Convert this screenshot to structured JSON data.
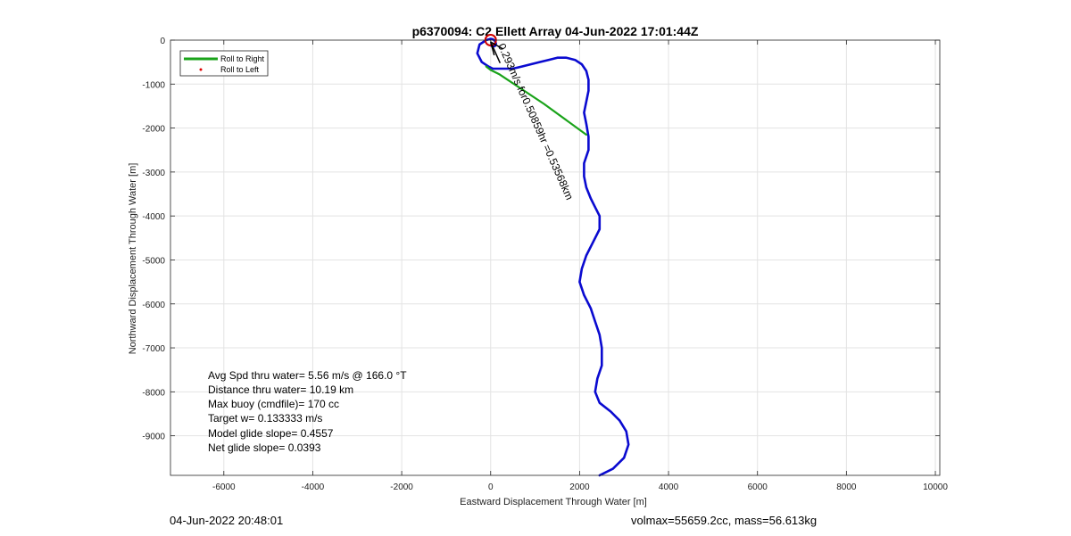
{
  "chart_data": {
    "type": "line",
    "title": "p6370094: C2 Ellett Array 04-Jun-2022 17:01:44Z",
    "xlabel": "Eastward Displacement Through Water [m]",
    "ylabel": "Northward Displacement Through Water [m]",
    "xlim": [
      -7200,
      10100
    ],
    "ylim": [
      -9900,
      0
    ],
    "xticks": [
      -6000,
      -4000,
      -2000,
      0,
      2000,
      4000,
      6000,
      8000,
      10000
    ],
    "yticks": [
      0,
      -1000,
      -2000,
      -3000,
      -4000,
      -5000,
      -6000,
      -7000,
      -8000,
      -9000
    ],
    "xtick_labels": [
      "-6000",
      "-4000",
      "-2000",
      "0",
      "2000",
      "4000",
      "6000",
      "8000",
      "10000"
    ],
    "ytick_labels": [
      "0",
      "-1000",
      "-2000",
      "-3000",
      "-4000",
      "-5000",
      "-6000",
      "-7000",
      "-8000",
      "-9000"
    ],
    "grid": true,
    "legend_position": "top-left",
    "legend": [
      {
        "label": "Roll to Right",
        "color": "#1aa31a",
        "style": "line"
      },
      {
        "label": "Roll to Left",
        "color": "#e00000",
        "style": "dot"
      }
    ],
    "series": [
      {
        "name": "track",
        "color": "#0a0ad0",
        "x": [
          2450,
          2750,
          3000,
          3100,
          3050,
          2900,
          2700,
          2450,
          2350,
          2400,
          2500,
          2500,
          2450,
          2350,
          2250,
          2100,
          2000,
          2050,
          2150,
          2300,
          2450,
          2450,
          2350,
          2250,
          2150,
          2100,
          2100,
          2200,
          2200,
          2150,
          2100,
          2150,
          2200,
          2200,
          2150,
          2050,
          1900,
          1700,
          1500,
          1300,
          1100,
          900,
          700,
          500,
          300,
          150,
          50,
          -50,
          -200,
          -300,
          -250,
          -100,
          0,
          50,
          100,
          120,
          100,
          50,
          0
        ],
        "y": [
          -9900,
          -9750,
          -9500,
          -9200,
          -8900,
          -8650,
          -8450,
          -8250,
          -8000,
          -7700,
          -7400,
          -7000,
          -6700,
          -6400,
          -6100,
          -5800,
          -5500,
          -5200,
          -4900,
          -4600,
          -4300,
          -4000,
          -3800,
          -3600,
          -3350,
          -3100,
          -2800,
          -2500,
          -2200,
          -1900,
          -1650,
          -1400,
          -1150,
          -900,
          -700,
          -550,
          -450,
          -400,
          -400,
          -450,
          -500,
          -550,
          -600,
          -650,
          -650,
          -650,
          -650,
          -600,
          -500,
          -300,
          -100,
          0,
          30,
          20,
          -20,
          -80,
          -130,
          -150,
          -120
        ]
      },
      {
        "name": "Roll to Right",
        "color": "#1aa31a",
        "x": [
          2150,
          1200,
          200,
          0,
          -100
        ],
        "y": [
          -2150,
          -1450,
          -780,
          -680,
          -600
        ]
      }
    ],
    "markers": [
      {
        "x": 0,
        "y": 0,
        "shape": "circle",
        "color": "#d00000"
      }
    ],
    "arrow_annotation": {
      "x": 0,
      "y": -40,
      "text": "0.293m/s for0.50859hr =0.53568km",
      "rotation_deg": 66
    },
    "stats": [
      "Avg Spd thru water=  5.56 m/s @ 166.0 °T",
      "Distance thru water= 10.19 km",
      "Max buoy (cmdfile)= 170 cc",
      "Target w= 0.133333 m/s",
      "Model glide slope= 0.4557",
      "Net glide slope= 0.0393"
    ]
  },
  "footer": {
    "timestamp": "04-Jun-2022 20:48:01",
    "volmax_mass": "volmax=55659.2cc, mass=56.613kg"
  }
}
